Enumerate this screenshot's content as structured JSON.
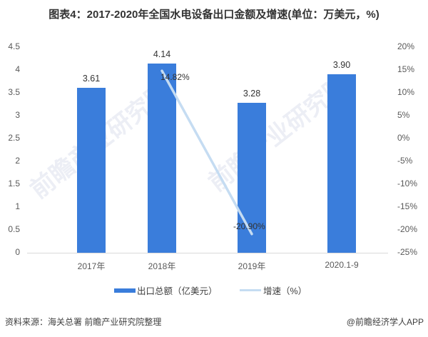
{
  "title": "图表4：2017-2020年全国水电设备出口金额及增速(单位：万美元，%)",
  "chart_data": {
    "type": "bar+line",
    "title": "图表4：2017-2020年全国水电设备出口金额及增速(单位：万美元，%)",
    "categories": [
      "2017年",
      "2018年",
      "2019年",
      "2020.1-9"
    ],
    "series": [
      {
        "name": "出口总额（亿美元）",
        "type": "bar",
        "axis": "left",
        "color": "#3a7ddb",
        "values": [
          3.61,
          4.14,
          3.28,
          3.9
        ],
        "labels": [
          "3.61",
          "4.14",
          "3.28",
          "3.90"
        ]
      },
      {
        "name": "增速（%）",
        "type": "line",
        "axis": "right",
        "color": "#c5dcf2",
        "values": [
          null,
          14.82,
          -20.9,
          null
        ],
        "labels": [
          "",
          "14.82%",
          "-20.90%",
          ""
        ]
      }
    ],
    "left_axis": {
      "ylim": [
        0,
        4.5
      ],
      "ticks": [
        "4.5",
        "4",
        "3.5",
        "3",
        "2.5",
        "2",
        "1.5",
        "1",
        "0.5",
        "0"
      ]
    },
    "right_axis": {
      "ylim": [
        -25,
        20
      ],
      "ticks": [
        "20%",
        "15%",
        "10%",
        "5%",
        "0%",
        "-5%",
        "-10%",
        "-15%",
        "-20%",
        "-25%"
      ]
    },
    "grid": false,
    "legend_position": "bottom"
  },
  "legend": {
    "bar_label": "出口总额（亿美元）",
    "line_label": "增速（%）"
  },
  "footer": {
    "source": "资料来源：海关总署 前瞻产业研究院整理",
    "credit": "@前瞻经济学人APP"
  },
  "watermark": "前瞻产业研究院"
}
